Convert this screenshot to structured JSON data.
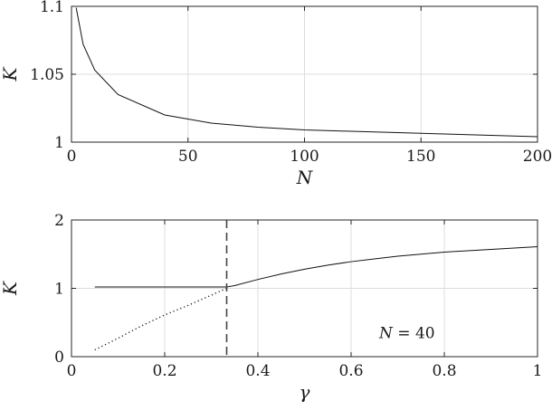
{
  "chart_data": [
    {
      "type": "line",
      "xlabel": "N",
      "ylabel": "K",
      "xlim": [
        0,
        200
      ],
      "ylim": [
        1,
        1.1
      ],
      "xticks": [
        0,
        50,
        100,
        150,
        200
      ],
      "yticks": [
        1,
        1.05,
        1.1
      ],
      "xtick_labels": [
        "0",
        "50",
        "100",
        "150",
        "200"
      ],
      "ytick_labels": [
        "1",
        "1.05",
        "1.1"
      ],
      "grid": true,
      "series": [
        {
          "style": "solid",
          "x": [
            2,
            5,
            10,
            20,
            40,
            60,
            80,
            100,
            120,
            140,
            160,
            180,
            200
          ],
          "y": [
            1.099,
            1.072,
            1.053,
            1.035,
            1.02,
            1.014,
            1.011,
            1.009,
            1.008,
            1.007,
            1.006,
            1.005,
            1.004
          ]
        }
      ]
    },
    {
      "type": "line",
      "xlabel": "γ",
      "ylabel": "K",
      "xlim": [
        0,
        1
      ],
      "ylim": [
        0,
        2
      ],
      "xticks": [
        0,
        0.2,
        0.4,
        0.6,
        0.8,
        1
      ],
      "yticks": [
        0,
        1,
        2
      ],
      "xtick_labels": [
        "0",
        "0.2",
        "0.4",
        "0.6",
        "0.8",
        "1"
      ],
      "ytick_labels": [
        "0",
        "1",
        "2"
      ],
      "grid": true,
      "series": [
        {
          "style": "solid",
          "x": [
            0.05,
            0.1,
            0.15,
            0.2,
            0.25,
            0.3,
            0.333,
            0.35,
            0.4,
            0.45,
            0.5,
            0.55,
            0.6,
            0.65,
            0.7,
            0.75,
            0.8,
            0.85,
            0.9,
            0.95,
            1.0
          ],
          "y": [
            1.02,
            1.02,
            1.02,
            1.02,
            1.02,
            1.02,
            1.02,
            1.04,
            1.13,
            1.21,
            1.28,
            1.34,
            1.39,
            1.43,
            1.47,
            1.5,
            1.53,
            1.55,
            1.57,
            1.59,
            1.61
          ]
        },
        {
          "style": "dotted",
          "x": [
            0.05,
            0.1,
            0.15,
            0.2,
            0.25,
            0.3,
            0.333
          ],
          "y": [
            0.1,
            0.27,
            0.45,
            0.61,
            0.75,
            0.9,
            1.0
          ]
        }
      ],
      "vline": {
        "x": 0.333,
        "style": "dashed"
      },
      "annotation": {
        "var": "N",
        "op": " = ",
        "value": "40",
        "x": 0.72,
        "y": 0.35
      }
    }
  ]
}
